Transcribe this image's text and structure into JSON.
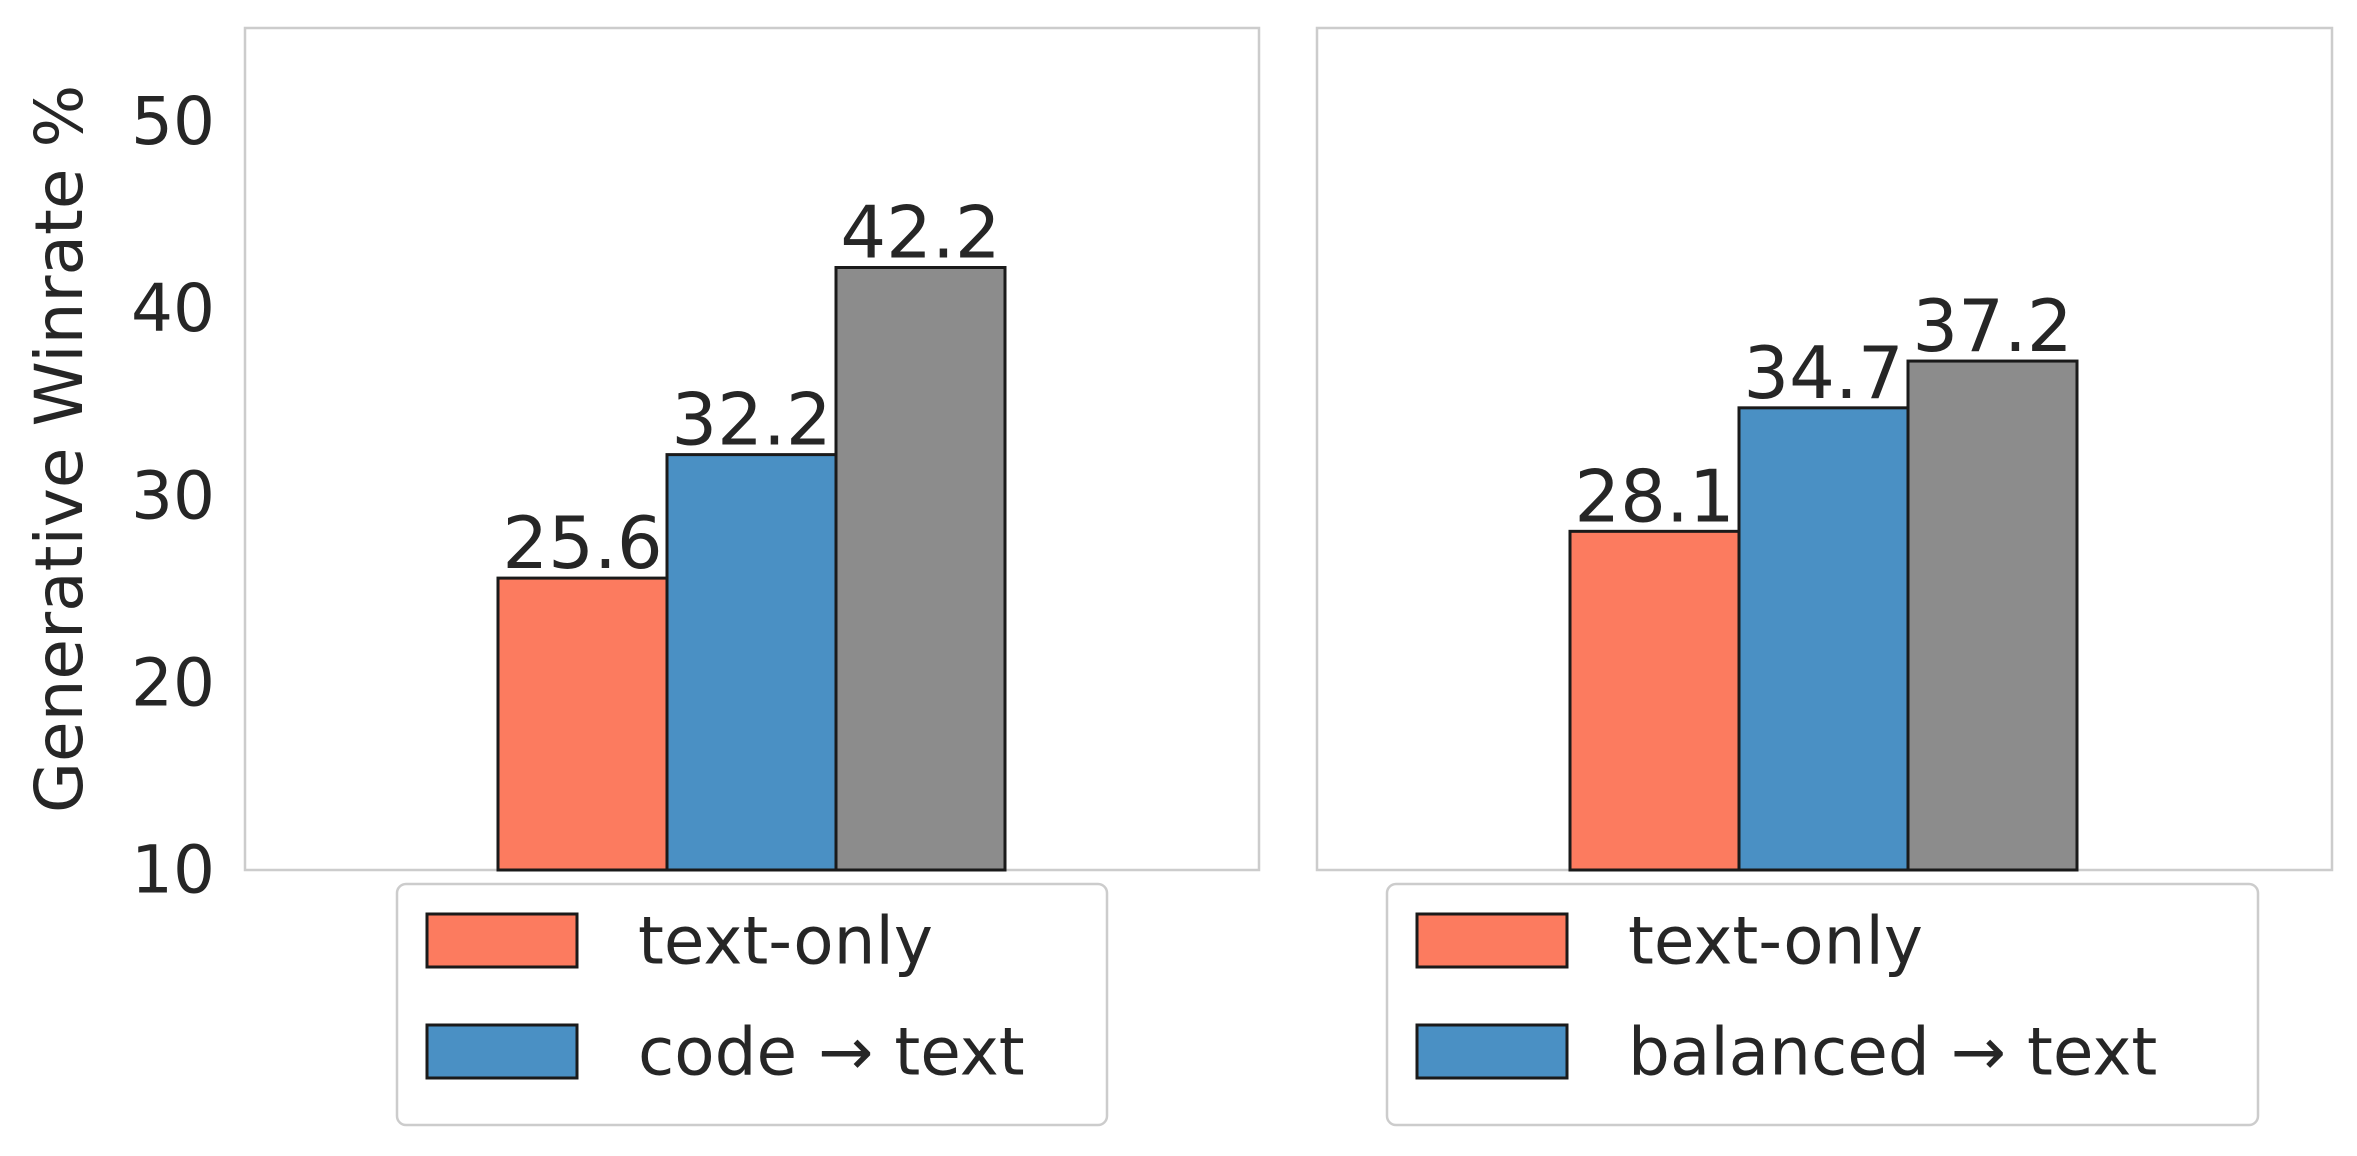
{
  "chart_data": [
    {
      "type": "bar",
      "ylabel": "Generative Winrate %",
      "xlabel": "",
      "title": "",
      "ylim": [
        10,
        55
      ],
      "yticks": [
        10,
        20,
        30,
        40,
        50
      ],
      "grid": false,
      "legend_position": "below",
      "series": [
        {
          "name": "text-only",
          "value": 25.6,
          "value_label": "25.6",
          "color": "#fc7b5f",
          "in_legend": true
        },
        {
          "name": "code → text",
          "value": 32.2,
          "value_label": "32.2",
          "color": "#4a90c4",
          "in_legend": true
        },
        {
          "value": 42.2,
          "value_label": "42.2",
          "color": "#8c8c8c",
          "in_legend": false
        }
      ]
    },
    {
      "type": "bar",
      "ylabel": "",
      "xlabel": "",
      "title": "",
      "ylim": [
        10,
        55
      ],
      "yticks": [],
      "grid": false,
      "legend_position": "below",
      "series": [
        {
          "name": "text-only",
          "value": 28.1,
          "value_label": "28.1",
          "color": "#fc7b5f",
          "in_legend": true
        },
        {
          "name": "balanced → text",
          "value": 34.7,
          "value_label": "34.7",
          "color": "#4a90c4",
          "in_legend": true
        },
        {
          "value": 37.2,
          "value_label": "37.2",
          "color": "#8c8c8c",
          "in_legend": false
        }
      ]
    }
  ]
}
